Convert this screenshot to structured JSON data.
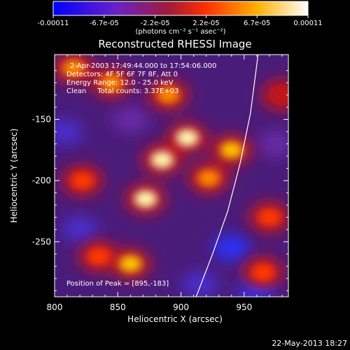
{
  "chart_data": {
    "type": "heatmap",
    "title": "Reconstructed RHESSI Image",
    "xlabel": "Heliocentric X (arcsec)",
    "ylabel": "Heliocentric Y (arcsec)",
    "xlim": [
      800,
      985
    ],
    "ylim": [
      -295,
      -97
    ],
    "x_ticks": [
      800,
      850,
      900,
      950
    ],
    "y_ticks": [
      -150,
      -200,
      -250
    ],
    "colorbar": {
      "range": [
        -0.00011,
        0.00011
      ],
      "tick_labels": [
        "-0.00011",
        "-6.7e-05",
        "-2.2e-05",
        "2.2e-05",
        "6.7e-05",
        "0.00011"
      ],
      "units": "(photons cm⁻² s⁻¹ asec⁻²)",
      "colors": [
        "#0000ff",
        "#7020c0",
        "#a02030",
        "#ff3000",
        "#ffb000",
        "#ffffff"
      ]
    },
    "annotations": [
      "2-Apr-2003 17:49:44.000 to 17:54:06.000",
      "Detectors: 4F 5F 6F 7F 8F, Att 0",
      "Energy Range: 12.0 - 25.0 keV",
      "Clean     Total counts: 3.37E+03"
    ],
    "peak_label": "Position of Peak = [895,-183]",
    "limb_curve": [
      [
        912,
        -295
      ],
      [
        925,
        -260
      ],
      [
        937,
        -225
      ],
      [
        947,
        -185
      ],
      [
        955,
        -145
      ],
      [
        961,
        -97
      ]
    ],
    "bright_sources": [
      {
        "x": 885,
        "y": -183,
        "level": 1.0
      },
      {
        "x": 905,
        "y": -165,
        "level": 0.95
      },
      {
        "x": 872,
        "y": -215,
        "level": 0.9
      },
      {
        "x": 860,
        "y": -268,
        "level": 0.85
      },
      {
        "x": 940,
        "y": -175,
        "level": 0.8
      },
      {
        "x": 922,
        "y": -198,
        "level": 0.7
      },
      {
        "x": 845,
        "y": -120,
        "level": 0.7
      },
      {
        "x": 890,
        "y": -130,
        "level": 0.65
      },
      {
        "x": 815,
        "y": -108,
        "level": 0.6
      },
      {
        "x": 822,
        "y": -200,
        "level": 0.45
      },
      {
        "x": 835,
        "y": -262,
        "level": 0.5
      },
      {
        "x": 970,
        "y": -230,
        "level": 0.55
      },
      {
        "x": 965,
        "y": -275,
        "level": 0.45
      },
      {
        "x": 980,
        "y": -130,
        "level": 0.4
      }
    ],
    "dark_sources": [
      {
        "x": 808,
        "y": -160,
        "level": -0.55
      },
      {
        "x": 820,
        "y": -240,
        "level": -0.6
      },
      {
        "x": 940,
        "y": -255,
        "level": -0.75
      },
      {
        "x": 960,
        "y": -290,
        "level": -0.8
      },
      {
        "x": 915,
        "y": -285,
        "level": -0.55
      },
      {
        "x": 975,
        "y": -170,
        "level": -0.45
      },
      {
        "x": 860,
        "y": -150,
        "level": -0.4
      }
    ]
  },
  "footer": {
    "timestamp": "22-May-2013 18:27"
  }
}
